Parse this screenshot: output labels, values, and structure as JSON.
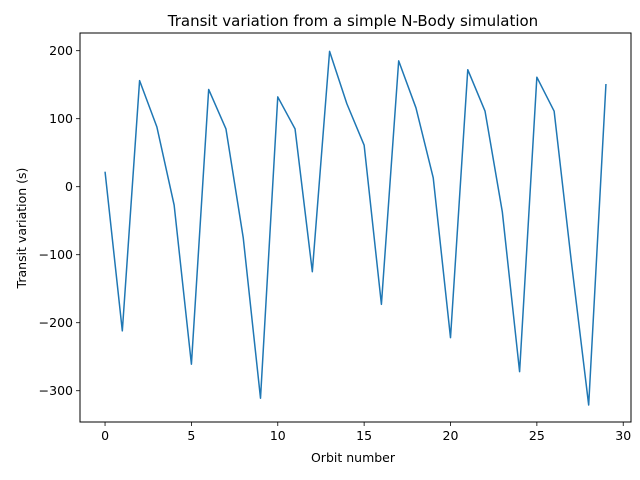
{
  "chart_data": {
    "type": "line",
    "title": "Transit variation from a simple N-Body simulation",
    "xlabel": "Orbit number",
    "ylabel": "Transit variation (s)",
    "xlim": [
      -1.45,
      30.45
    ],
    "ylim": [
      -346,
      226
    ],
    "xticks": [
      0,
      5,
      10,
      15,
      20,
      25,
      30
    ],
    "yticks": [
      -300,
      -200,
      -100,
      0,
      100,
      200
    ],
    "xtick_labels": [
      "0",
      "5",
      "10",
      "15",
      "20",
      "25",
      "30"
    ],
    "ytick_labels": [
      "−300",
      "−200",
      "−100",
      "0",
      "100",
      "200"
    ],
    "grid": false,
    "legend": "none",
    "series": [
      {
        "color": "#1f77b4",
        "x": [
          0,
          1,
          2,
          3,
          4,
          5,
          6,
          7,
          8,
          9,
          10,
          11,
          12,
          13,
          14,
          15,
          16,
          17,
          18,
          19,
          20,
          21,
          22,
          23,
          24,
          25,
          26,
          27,
          28,
          29
        ],
        "values": [
          22,
          -212,
          156,
          88,
          -27,
          -261,
          143,
          85,
          -75,
          -311,
          132,
          85,
          -125,
          199,
          122,
          61,
          -173,
          185,
          116,
          13,
          -222,
          172,
          111,
          -37,
          -272,
          161,
          111,
          -111,
          -321,
          151
        ]
      }
    ]
  }
}
